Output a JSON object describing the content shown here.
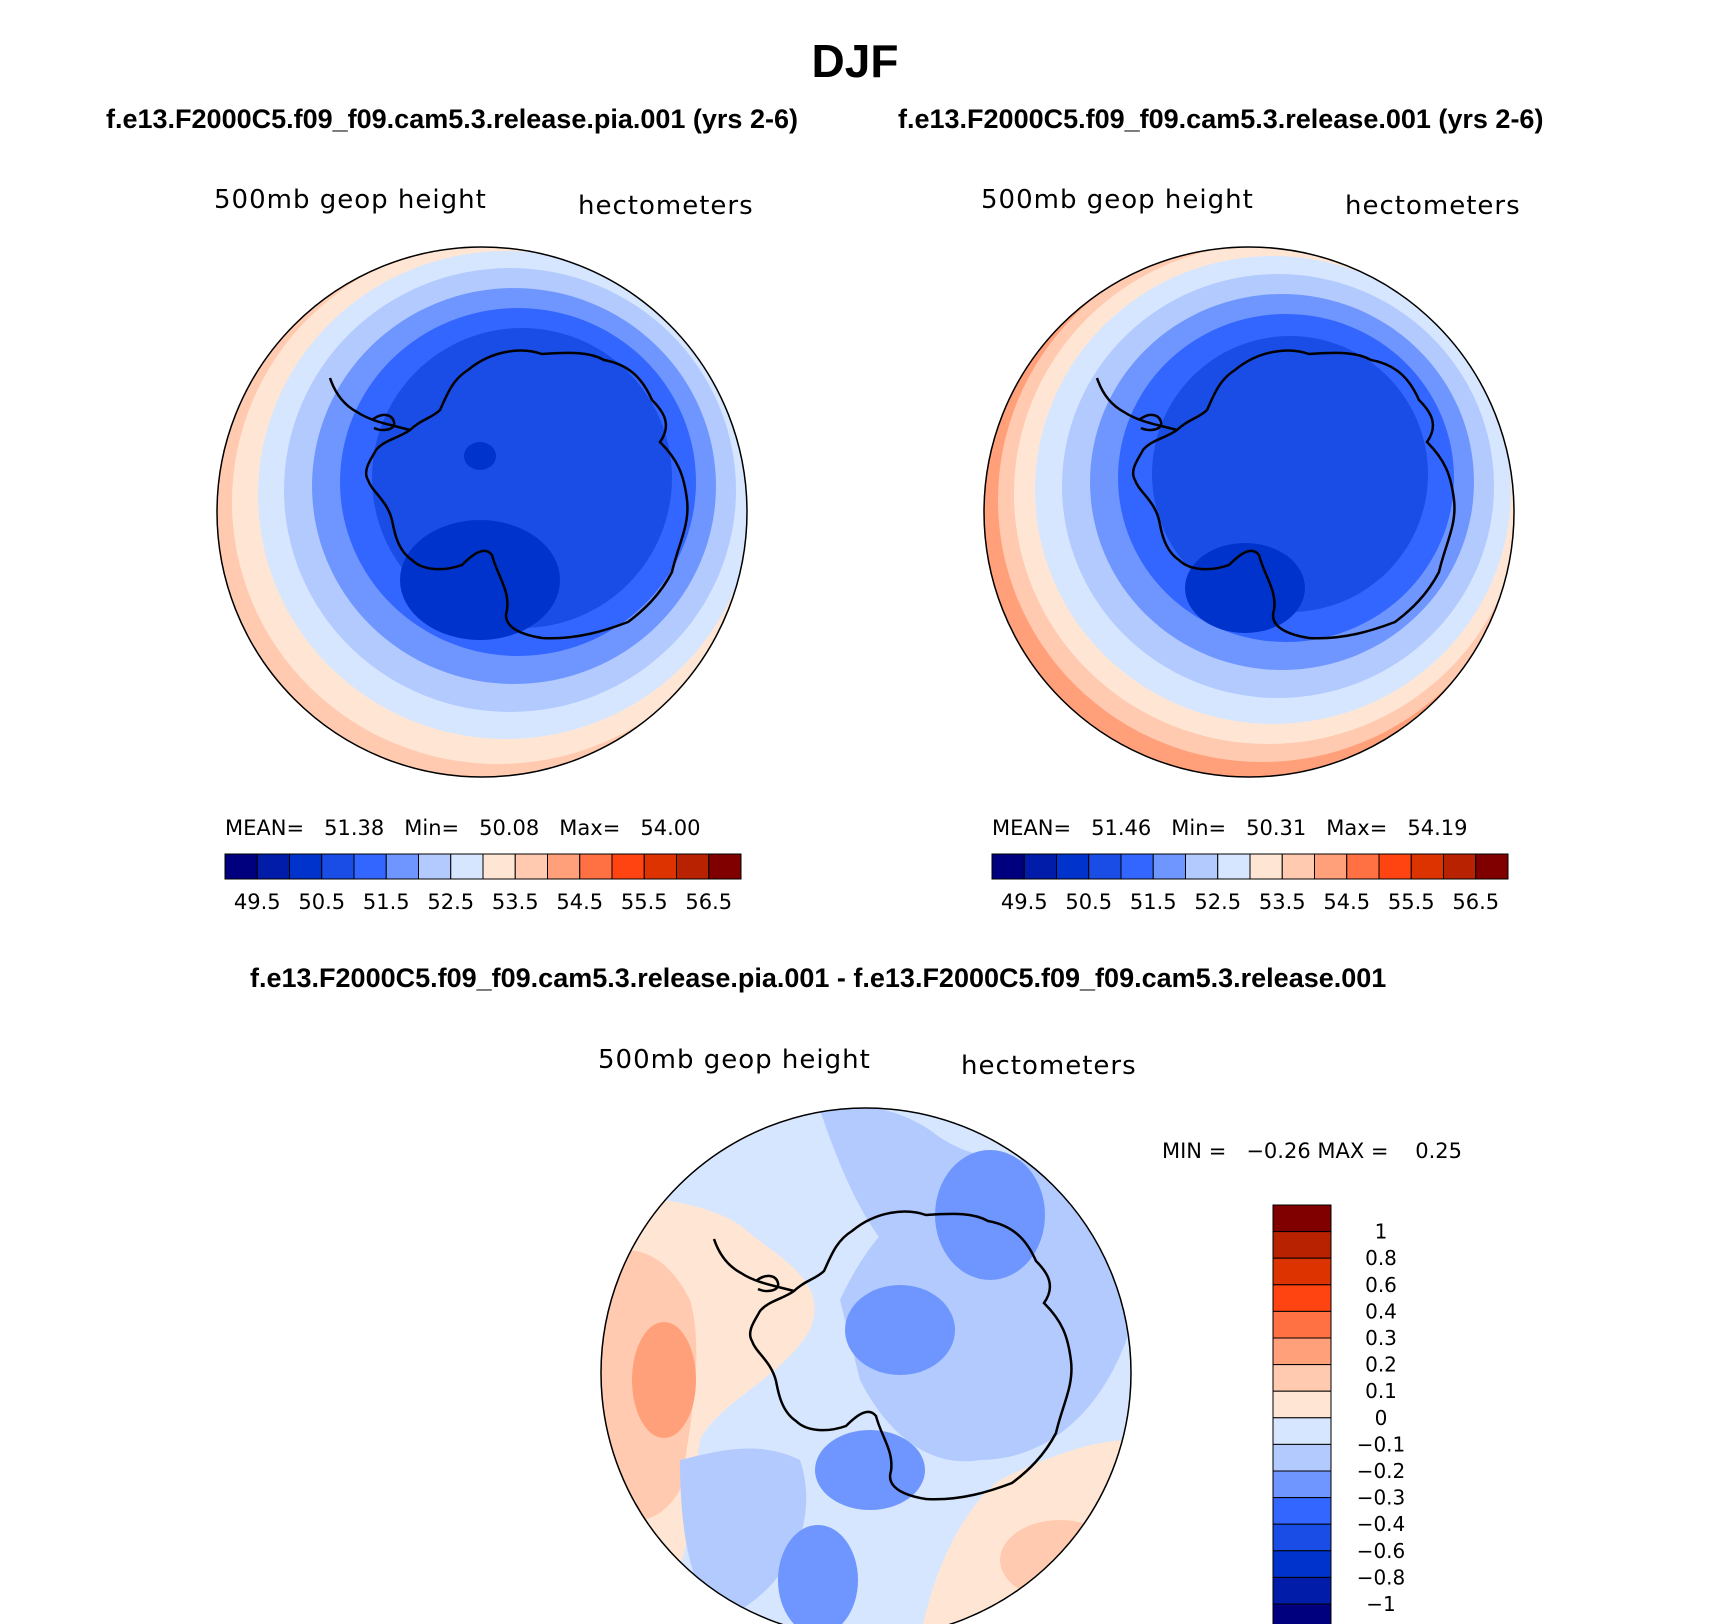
{
  "title": "DJF",
  "top_left": {
    "case": "f.e13.F2000C5.f09_f09.cam5.3.release.pia.001 (yrs 2-6)",
    "field": "500mb geop height",
    "units": "hectometers",
    "mean_label": "MEAN=",
    "mean": "51.38",
    "min_label": "Min=",
    "min": "50.08",
    "max_label": "Max=",
    "max": "54.00"
  },
  "top_right": {
    "case": "f.e13.F2000C5.f09_f09.cam5.3.release.001 (yrs 2-6)",
    "field": "500mb geop height",
    "units": "hectometers",
    "mean_label": "MEAN=",
    "mean": "51.46",
    "min_label": "Min=",
    "min": "50.31",
    "max_label": "Max=",
    "max": "54.19"
  },
  "bottom": {
    "case": "f.e13.F2000C5.f09_f09.cam5.3.release.pia.001 - f.e13.F2000C5.f09_f09.cam5.3.release.001",
    "field": "500mb geop height",
    "units": "hectometers",
    "min_label": "MIN =",
    "min": "−0.26",
    "max_label": "MAX =",
    "max": "0.25"
  },
  "abs_colorbar": {
    "colors": [
      "#00007f",
      "#001ca8",
      "#0033cc",
      "#1a4de6",
      "#3366ff",
      "#6f96ff",
      "#b3caff",
      "#d6e6ff",
      "#ffe6d4",
      "#ffcab0",
      "#ffa07a",
      "#ff7043",
      "#ff4411",
      "#dd3300",
      "#b82200",
      "#800000"
    ],
    "labels": [
      "49.5",
      "50.5",
      "51.5",
      "52.5",
      "53.5",
      "54.5",
      "55.5",
      "56.5"
    ]
  },
  "diff_colorbar": {
    "colors": [
      "#00007f",
      "#001ca8",
      "#0033cc",
      "#1a4de6",
      "#3366ff",
      "#6f96ff",
      "#b3caff",
      "#d6e6ff",
      "#ffe6d4",
      "#ffcab0",
      "#ffa07a",
      "#ff7043",
      "#ff4411",
      "#dd3300",
      "#b82200",
      "#800000"
    ],
    "labels": [
      "1",
      "0.8",
      "0.6",
      "0.4",
      "0.3",
      "0.2",
      "0.1",
      "0",
      "−0.1",
      "−0.2",
      "−0.3",
      "−0.4",
      "−0.6",
      "−0.8",
      "−1"
    ]
  }
}
